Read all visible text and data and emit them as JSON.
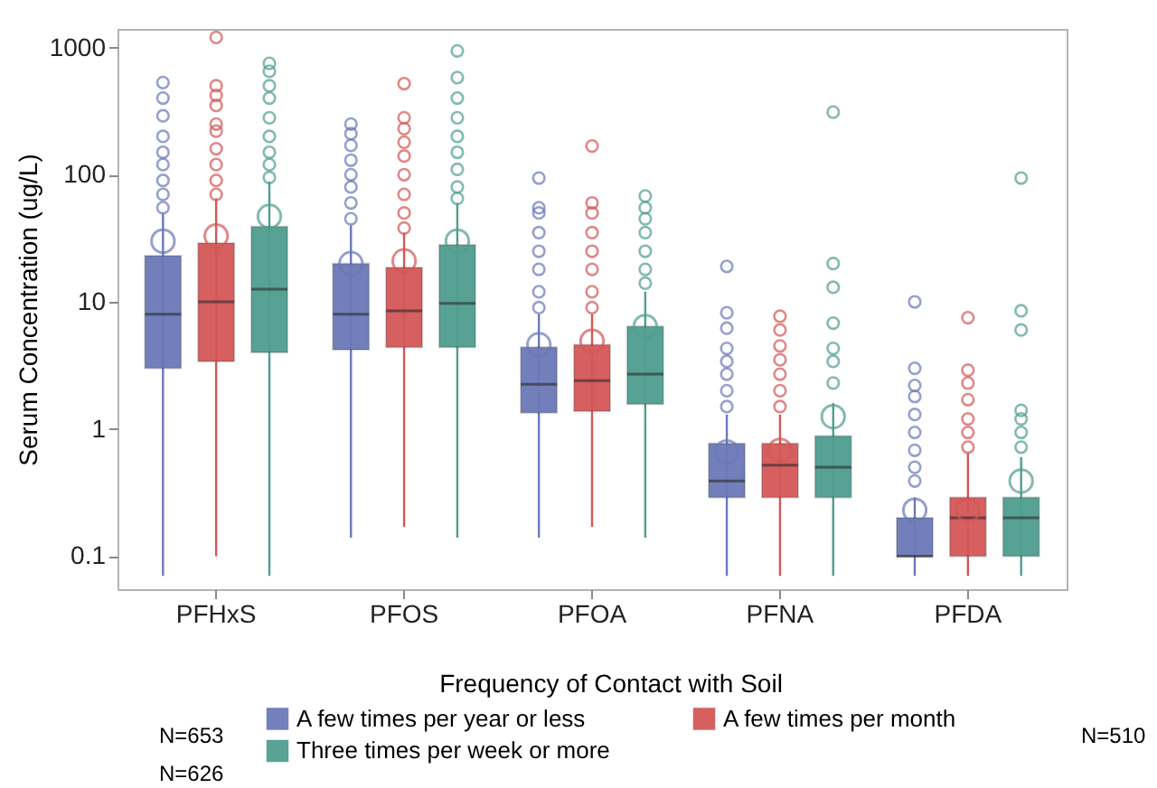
{
  "chart_data": {
    "type": "box",
    "categories": [
      "PFHxS",
      "PFOS",
      "PFOA",
      "PFNA",
      "PFDA"
    ],
    "ylabel": "Serum Concentration (ug/L)",
    "legend_title": "Frequency of Contact with Soil",
    "log": "y",
    "ylim": [
      0.055,
      1400
    ],
    "yticks": [
      0.1,
      1,
      10,
      100,
      1000
    ],
    "grid": false,
    "legend": "bottom",
    "marker": "circle",
    "annotations": [
      "N=653",
      "N=510",
      "N=626"
    ],
    "series": [
      {
        "name": "A few times per year or less",
        "color": "#6b79b8",
        "boxes": [
          {
            "low": 0.07,
            "q1": 3.0,
            "median": 8,
            "q3": 23,
            "high": 50,
            "mean": 30,
            "outliers": [
              55,
              70,
              90,
              120,
              150,
              200,
              290,
              400,
              530
            ]
          },
          {
            "low": 0.14,
            "q1": 4.2,
            "median": 8,
            "q3": 20,
            "high": 40,
            "mean": 20,
            "outliers": [
              45,
              60,
              80,
              100,
              130,
              170,
              210,
              250
            ]
          },
          {
            "low": 0.14,
            "q1": 1.34,
            "median": 2.25,
            "q3": 4.4,
            "high": 8,
            "mean": 4.6,
            "outliers": [
              9,
              12,
              18,
              25,
              35,
              50,
              55,
              94
            ]
          },
          {
            "low": 0.07,
            "q1": 0.29,
            "median": 0.39,
            "q3": 0.77,
            "high": 1.3,
            "mean": 0.66,
            "outliers": [
              1.5,
              2,
              2.7,
              3.4,
              4.3,
              6.2,
              8.2,
              19
            ]
          },
          {
            "low": 0.07,
            "q1": 0.1,
            "median": 0.1,
            "q3": 0.2,
            "high": 0.29,
            "mean": 0.23,
            "outliers": [
              0.39,
              0.5,
              0.68,
              0.94,
              1.3,
              1.8,
              2.2,
              3,
              10
            ]
          }
        ]
      },
      {
        "name": "A few times per month",
        "color": "#d45757",
        "boxes": [
          {
            "low": 0.1,
            "q1": 3.4,
            "median": 10,
            "q3": 29,
            "high": 65,
            "mean": 33,
            "outliers": [
              70,
              90,
              120,
              160,
              220,
              250,
              350,
              420,
              500,
              1200
            ]
          },
          {
            "low": 0.17,
            "q1": 4.4,
            "median": 8.5,
            "q3": 18.6,
            "high": 35,
            "mean": 21,
            "outliers": [
              38,
              50,
              70,
              100,
              140,
              180,
              230,
              280,
              520
            ]
          },
          {
            "low": 0.17,
            "q1": 1.38,
            "median": 2.4,
            "q3": 4.6,
            "high": 8,
            "mean": 4.9,
            "outliers": [
              9,
              12,
              18,
              25,
              35,
              50,
              60,
              168
            ]
          },
          {
            "low": 0.07,
            "q1": 0.29,
            "median": 0.52,
            "q3": 0.77,
            "high": 1.3,
            "mean": 0.68,
            "outliers": [
              1.5,
              2,
              2.7,
              3.5,
              4.5,
              6,
              7.7
            ]
          },
          {
            "low": 0.07,
            "q1": 0.1,
            "median": 0.2,
            "q3": 0.29,
            "high": 0.65,
            "mean": 0.23,
            "outliers": [
              0.72,
              0.94,
              1.2,
              1.7,
              2.3,
              2.9,
              7.5
            ]
          }
        ]
      },
      {
        "name": "Three times per week or more",
        "color": "#4f9e8f",
        "boxes": [
          {
            "low": 0.07,
            "q1": 4.0,
            "median": 12.6,
            "q3": 39,
            "high": 88,
            "mean": 47,
            "outliers": [
              95,
              120,
              150,
              200,
              280,
              400,
              500,
              650,
              750
            ]
          },
          {
            "low": 0.14,
            "q1": 4.4,
            "median": 9.7,
            "q3": 28,
            "high": 60,
            "mean": 30,
            "outliers": [
              65,
              80,
              110,
              150,
              200,
              280,
              400,
              580,
              940
            ]
          },
          {
            "low": 0.14,
            "q1": 1.57,
            "median": 2.7,
            "q3": 6.4,
            "high": 12,
            "mean": 6.4,
            "outliers": [
              14,
              18,
              25,
              35,
              45,
              55,
              68
            ]
          },
          {
            "low": 0.07,
            "q1": 0.29,
            "median": 0.5,
            "q3": 0.88,
            "high": 1.6,
            "mean": 1.25,
            "outliers": [
              2.3,
              3.4,
              4.3,
              6.8,
              13,
              20,
              310
            ]
          },
          {
            "low": 0.07,
            "q1": 0.1,
            "median": 0.2,
            "q3": 0.29,
            "high": 0.6,
            "mean": 0.39,
            "outliers": [
              0.72,
              0.94,
              1.2,
              1.4,
              6,
              8.5,
              94
            ]
          }
        ]
      }
    ]
  }
}
